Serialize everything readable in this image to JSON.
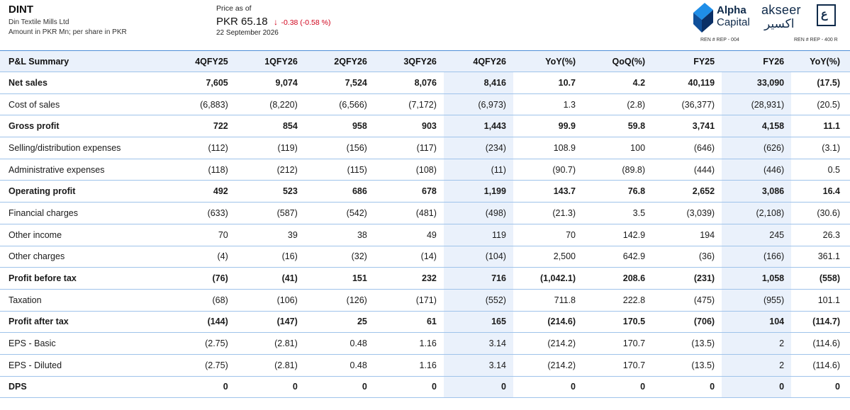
{
  "header": {
    "ticker": "DINT",
    "company": "Din Textile Mills Ltd",
    "units": "Amount in PKR Mn; per share in PKR",
    "price_asof_label": "Price as of",
    "price": "PKR 65.18",
    "price_change": "-0.38 (-0.58 %)",
    "price_date": "22 September 2026",
    "down_color": "#d0021b"
  },
  "logos": {
    "alpha_line1": "Alpha",
    "alpha_line2": "Capital",
    "alpha_ren": "REN # REP - 004",
    "akseer_latin": "akseer",
    "akseer_arabic": "اكسير",
    "akseer_mark": "ع",
    "akseer_ren": "REN # REP - 400 R"
  },
  "table": {
    "columns": [
      "P&L Summary",
      "4QFY25",
      "1QFY26",
      "2QFY26",
      "3QFY26",
      "4QFY26",
      "YoY(%)",
      "QoQ(%)",
      "FY25",
      "FY26",
      "YoY(%)"
    ],
    "rows": [
      {
        "label": "Net sales",
        "bold": true,
        "values": [
          "7,605",
          "9,074",
          "7,524",
          "8,076",
          "8,416",
          "10.7",
          "4.2",
          "40,119",
          "33,090",
          "(17.5)"
        ]
      },
      {
        "label": "Cost of sales",
        "bold": false,
        "values": [
          "(6,883)",
          "(8,220)",
          "(6,566)",
          "(7,172)",
          "(6,973)",
          "1.3",
          "(2.8)",
          "(36,377)",
          "(28,931)",
          "(20.5)"
        ]
      },
      {
        "label": "Gross profit",
        "bold": true,
        "values": [
          "722",
          "854",
          "958",
          "903",
          "1,443",
          "99.9",
          "59.8",
          "3,741",
          "4,158",
          "11.1"
        ]
      },
      {
        "label": "Selling/distribution expenses",
        "bold": false,
        "values": [
          "(112)",
          "(119)",
          "(156)",
          "(117)",
          "(234)",
          "108.9",
          "100",
          "(646)",
          "(626)",
          "(3.1)"
        ]
      },
      {
        "label": "Administrative expenses",
        "bold": false,
        "values": [
          "(118)",
          "(212)",
          "(115)",
          "(108)",
          "(11)",
          "(90.7)",
          "(89.8)",
          "(444)",
          "(446)",
          "0.5"
        ]
      },
      {
        "label": "Operating profit",
        "bold": true,
        "values": [
          "492",
          "523",
          "686",
          "678",
          "1,199",
          "143.7",
          "76.8",
          "2,652",
          "3,086",
          "16.4"
        ]
      },
      {
        "label": "Financial charges",
        "bold": false,
        "values": [
          "(633)",
          "(587)",
          "(542)",
          "(481)",
          "(498)",
          "(21.3)",
          "3.5",
          "(3,039)",
          "(2,108)",
          "(30.6)"
        ]
      },
      {
        "label": "Other income",
        "bold": false,
        "values": [
          "70",
          "39",
          "38",
          "49",
          "119",
          "70",
          "142.9",
          "194",
          "245",
          "26.3"
        ]
      },
      {
        "label": "Other charges",
        "bold": false,
        "values": [
          "(4)",
          "(16)",
          "(32)",
          "(14)",
          "(104)",
          "2,500",
          "642.9",
          "(36)",
          "(166)",
          "361.1"
        ]
      },
      {
        "label": "Profit before tax",
        "bold": true,
        "values": [
          "(76)",
          "(41)",
          "151",
          "232",
          "716",
          "(1,042.1)",
          "208.6",
          "(231)",
          "1,058",
          "(558)"
        ]
      },
      {
        "label": "Taxation",
        "bold": false,
        "values": [
          "(68)",
          "(106)",
          "(126)",
          "(171)",
          "(552)",
          "711.8",
          "222.8",
          "(475)",
          "(955)",
          "101.1"
        ]
      },
      {
        "label": "Profit after tax",
        "bold": true,
        "values": [
          "(144)",
          "(147)",
          "25",
          "61",
          "165",
          "(214.6)",
          "170.5",
          "(706)",
          "104",
          "(114.7)"
        ]
      },
      {
        "label": "EPS - Basic",
        "bold": false,
        "values": [
          "(2.75)",
          "(2.81)",
          "0.48",
          "1.16",
          "3.14",
          "(214.2)",
          "170.7",
          "(13.5)",
          "2",
          "(114.6)"
        ]
      },
      {
        "label": "EPS - Diluted",
        "bold": false,
        "values": [
          "(2.75)",
          "(2.81)",
          "0.48",
          "1.16",
          "3.14",
          "(214.2)",
          "170.7",
          "(13.5)",
          "2",
          "(114.6)"
        ]
      },
      {
        "label": "DPS",
        "bold": true,
        "values": [
          "0",
          "0",
          "0",
          "0",
          "0",
          "0",
          "0",
          "0",
          "0",
          "0"
        ]
      }
    ]
  }
}
